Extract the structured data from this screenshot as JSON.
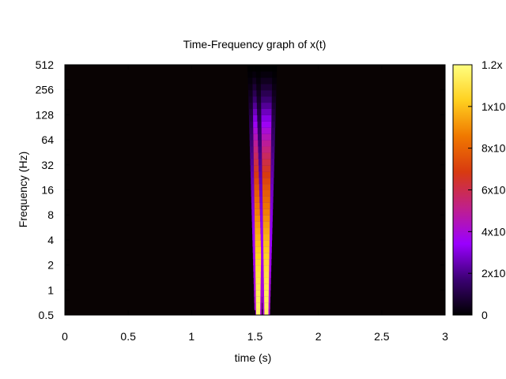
{
  "chart_data": {
    "type": "heatmap",
    "title": "Time-Frequency graph of x(t)",
    "xlabel": "time (s)",
    "ylabel": "Frequency (Hz)",
    "xlim": [
      0,
      3
    ],
    "x_ticks": [
      "0",
      "0.5",
      "1",
      "1.5",
      "2",
      "2.5",
      "3"
    ],
    "y_scale": "log2",
    "ylim": [
      0.5,
      512
    ],
    "y_ticks": [
      "0.5",
      "1",
      "2",
      "4",
      "8",
      "16",
      "32",
      "64",
      "128",
      "256",
      "512"
    ],
    "colorbar": {
      "range": [
        0,
        1.2
      ],
      "tick_labels": [
        "0",
        "2x10",
        "4x10",
        "6x10",
        "8x10",
        "1x10",
        "1.2x"
      ],
      "tick_values": [
        0,
        0.2,
        0.4,
        0.6,
        0.8,
        1.0,
        1.2
      ],
      "colors": [
        "#000000",
        "#3b0073",
        "#9a00ff",
        "#c0208a",
        "#d83a10",
        "#f07800",
        "#ffd020",
        "#ffff80"
      ]
    },
    "grid": false,
    "legend": "none",
    "ridges": [
      {
        "x": 1.525,
        "peak": 1.15
      },
      {
        "x": 1.59,
        "peak": 1.15
      }
    ]
  }
}
